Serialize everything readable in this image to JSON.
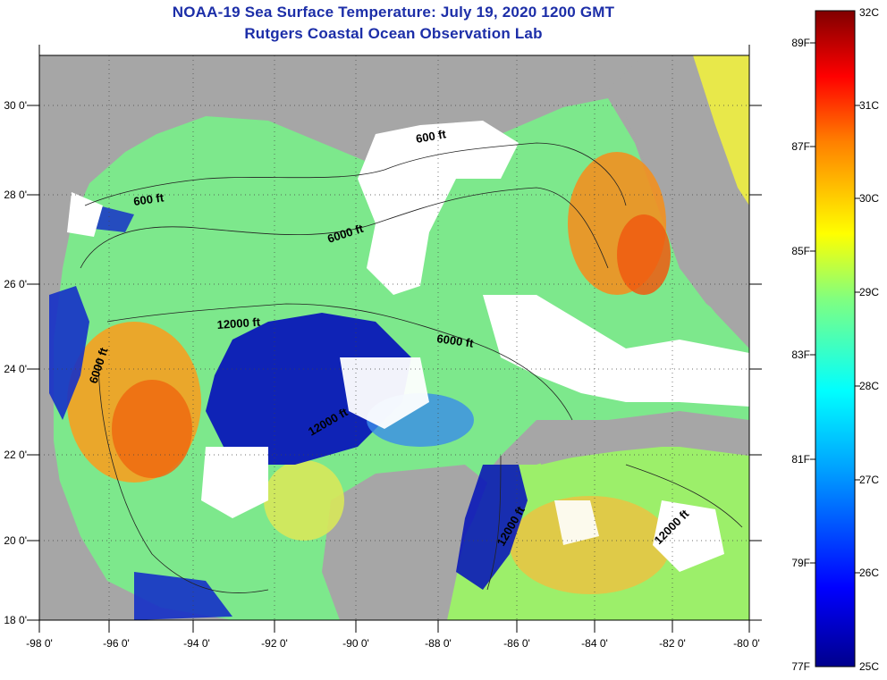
{
  "title_line1": "NOAA-19 Sea Surface Temperature:  July 19, 2020 1200 GMT",
  "title_line2": "Rutgers Coastal Ocean Observation Lab",
  "lat_labels": [
    "18 0'",
    "20 0'",
    "22 0'",
    "24 0'",
    "26 0'",
    "28 0'",
    "30 0'"
  ],
  "lon_labels": [
    "-98 0'",
    "-96 0'",
    "-94 0'",
    "-92 0'",
    "-90 0'",
    "-88 0'",
    "-86 0'",
    "-84 0'",
    "-82 0'",
    "-80 0'"
  ],
  "contour_labels": [
    "600 ft",
    "600 ft",
    "6000 ft",
    "12000 ft",
    "6000 ft",
    "6000 ft",
    "12000 ft",
    "12000 ft",
    "12000 ft"
  ],
  "colorbar": {
    "celsius": [
      "32C",
      "31C",
      "30C",
      "29C",
      "28C",
      "27C",
      "26C",
      "25C"
    ],
    "fahrenheit": [
      "89F",
      "87F",
      "85F",
      "83F",
      "81F",
      "79F",
      "77F"
    ]
  },
  "colors": {
    "title": "#1c2ea8",
    "land": "#a6a6a6",
    "cloud": "#ffffff"
  }
}
